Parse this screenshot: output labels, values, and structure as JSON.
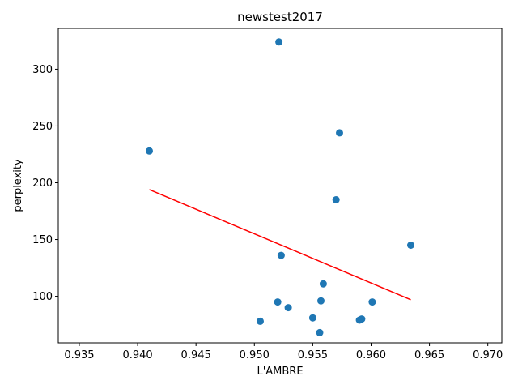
{
  "chart_data": {
    "type": "scatter",
    "title": "newstest2017",
    "xlabel": "L'AMBRE",
    "ylabel": "perplexity",
    "xlim": [
      0.9332,
      0.9712
    ],
    "ylim": [
      59,
      336
    ],
    "x_ticks": [
      0.935,
      0.94,
      0.945,
      0.95,
      0.955,
      0.96,
      0.965,
      0.97
    ],
    "x_tick_labels": [
      "0.935",
      "0.940",
      "0.945",
      "0.950",
      "0.955",
      "0.960",
      "0.965",
      "0.970"
    ],
    "y_ticks": [
      100,
      150,
      200,
      250,
      300
    ],
    "y_tick_labels": [
      "100",
      "150",
      "200",
      "250",
      "300"
    ],
    "grid": false,
    "series": [
      {
        "kind": "points",
        "color": "#1f77b4",
        "x": [
          0.9521,
          0.941,
          0.9573,
          0.957,
          0.9634,
          0.9523,
          0.9559,
          0.9557,
          0.952,
          0.9601,
          0.9529,
          0.955,
          0.9592,
          0.959,
          0.9505,
          0.9556
        ],
        "y": [
          324,
          228,
          244,
          185,
          145,
          136,
          111,
          96,
          95,
          95,
          90,
          81,
          80,
          79,
          78,
          68
        ]
      },
      {
        "kind": "fit-line",
        "color": "#ff0000",
        "x": [
          0.941,
          0.9634
        ],
        "y": [
          194,
          97
        ]
      }
    ]
  }
}
